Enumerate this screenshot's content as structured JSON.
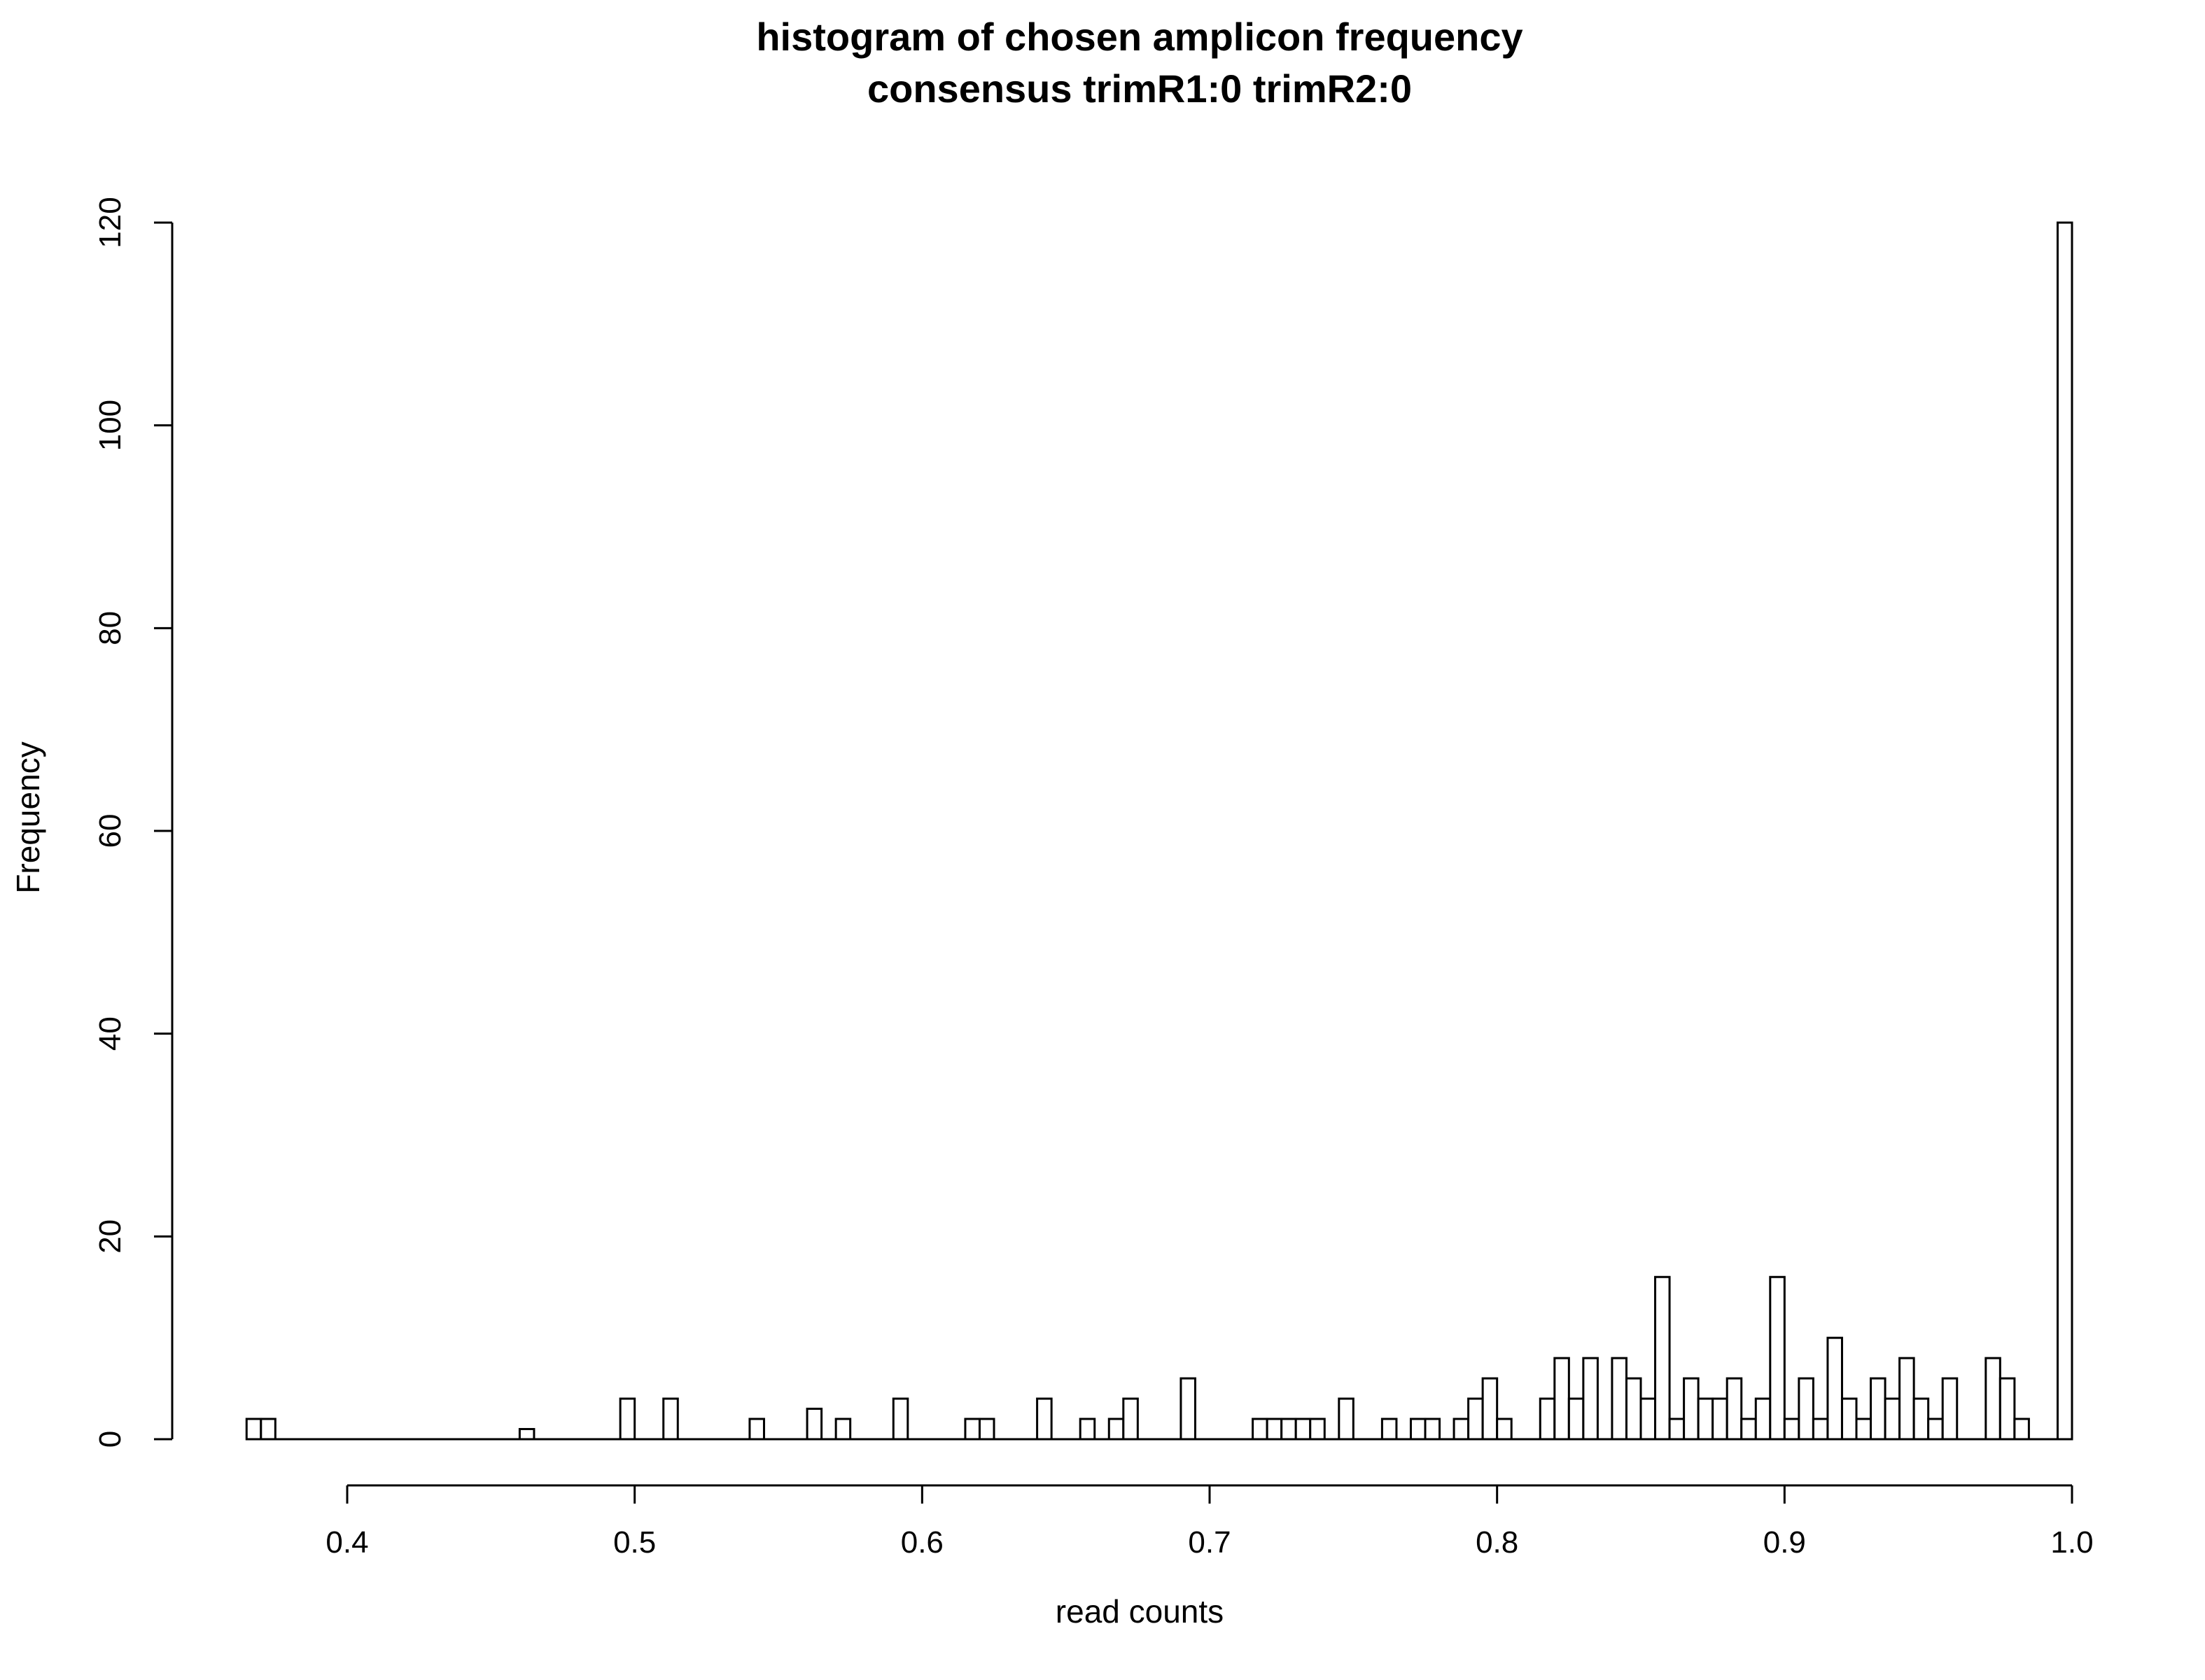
{
  "chart_data": {
    "type": "bar",
    "title": "histogram of chosen amplicon frequency",
    "subtitle": "consensus trimR1:0 trimR2:0",
    "xlabel": "read counts",
    "ylabel": "Frequency",
    "xlim": [
      0.365,
      1.0
    ],
    "ylim": [
      0,
      120
    ],
    "x_ticks": [
      "0.4",
      "0.5",
      "0.6",
      "0.7",
      "0.8",
      "0.9",
      "1.0"
    ],
    "y_ticks": [
      "0",
      "20",
      "40",
      "60",
      "80",
      "100",
      "120"
    ],
    "bin_width": 0.005,
    "grid": false,
    "bins": [
      {
        "x": 0.365,
        "y": 2
      },
      {
        "x": 0.37,
        "y": 2
      },
      {
        "x": 0.46,
        "y": 1
      },
      {
        "x": 0.495,
        "y": 4
      },
      {
        "x": 0.51,
        "y": 4
      },
      {
        "x": 0.54,
        "y": 2
      },
      {
        "x": 0.56,
        "y": 3
      },
      {
        "x": 0.57,
        "y": 2
      },
      {
        "x": 0.59,
        "y": 4
      },
      {
        "x": 0.615,
        "y": 2
      },
      {
        "x": 0.62,
        "y": 2
      },
      {
        "x": 0.64,
        "y": 4
      },
      {
        "x": 0.655,
        "y": 2
      },
      {
        "x": 0.665,
        "y": 2
      },
      {
        "x": 0.67,
        "y": 4
      },
      {
        "x": 0.69,
        "y": 6
      },
      {
        "x": 0.715,
        "y": 2
      },
      {
        "x": 0.72,
        "y": 2
      },
      {
        "x": 0.725,
        "y": 2
      },
      {
        "x": 0.73,
        "y": 2
      },
      {
        "x": 0.735,
        "y": 2
      },
      {
        "x": 0.745,
        "y": 4
      },
      {
        "x": 0.76,
        "y": 2
      },
      {
        "x": 0.77,
        "y": 2
      },
      {
        "x": 0.775,
        "y": 2
      },
      {
        "x": 0.785,
        "y": 2
      },
      {
        "x": 0.79,
        "y": 4
      },
      {
        "x": 0.795,
        "y": 6
      },
      {
        "x": 0.8,
        "y": 2
      },
      {
        "x": 0.815,
        "y": 4
      },
      {
        "x": 0.82,
        "y": 8
      },
      {
        "x": 0.825,
        "y": 4
      },
      {
        "x": 0.83,
        "y": 8
      },
      {
        "x": 0.84,
        "y": 8
      },
      {
        "x": 0.845,
        "y": 6
      },
      {
        "x": 0.85,
        "y": 4
      },
      {
        "x": 0.855,
        "y": 16
      },
      {
        "x": 0.86,
        "y": 2
      },
      {
        "x": 0.865,
        "y": 6
      },
      {
        "x": 0.87,
        "y": 4
      },
      {
        "x": 0.875,
        "y": 4
      },
      {
        "x": 0.88,
        "y": 6
      },
      {
        "x": 0.885,
        "y": 2
      },
      {
        "x": 0.89,
        "y": 4
      },
      {
        "x": 0.895,
        "y": 16
      },
      {
        "x": 0.9,
        "y": 2
      },
      {
        "x": 0.905,
        "y": 6
      },
      {
        "x": 0.91,
        "y": 2
      },
      {
        "x": 0.915,
        "y": 10
      },
      {
        "x": 0.92,
        "y": 4
      },
      {
        "x": 0.925,
        "y": 2
      },
      {
        "x": 0.93,
        "y": 6
      },
      {
        "x": 0.935,
        "y": 4
      },
      {
        "x": 0.94,
        "y": 8
      },
      {
        "x": 0.945,
        "y": 4
      },
      {
        "x": 0.95,
        "y": 2
      },
      {
        "x": 0.955,
        "y": 6
      },
      {
        "x": 0.97,
        "y": 8
      },
      {
        "x": 0.975,
        "y": 6
      },
      {
        "x": 0.98,
        "y": 2
      },
      {
        "x": 0.995,
        "y": 120
      }
    ]
  }
}
